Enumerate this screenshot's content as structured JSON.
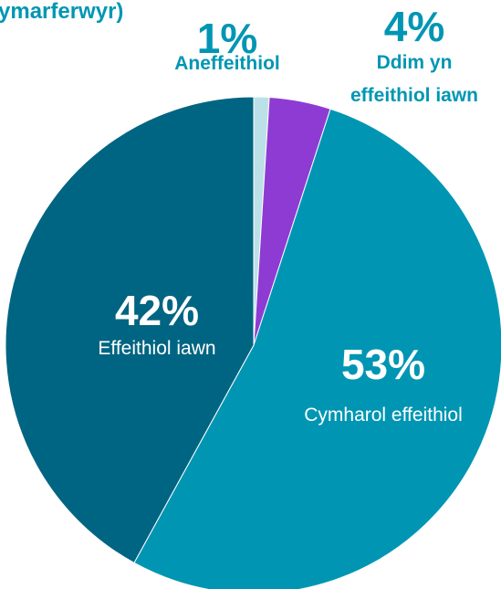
{
  "chart_data": {
    "type": "pie",
    "title_fragment": "ymarferwyr)",
    "start_angle_deg": 0,
    "direction": "clockwise",
    "slices": [
      {
        "label_lines": [
          "Aneffeithiol"
        ],
        "value": 1,
        "value_text": "1%",
        "color": "#BCE0E8",
        "label_color": "#0096B3",
        "label_style": "outside"
      },
      {
        "label_lines": [
          "Ddim yn",
          "effeithiol iawn"
        ],
        "value": 4,
        "value_text": "4%",
        "color": "#8E3BD4",
        "label_color": "#0096B3",
        "label_style": "outside"
      },
      {
        "label_lines": [
          "Cymharol effeithiol"
        ],
        "value": 53,
        "value_text": "53%",
        "color": "#0096B3",
        "label_color": "#FFFFFF",
        "label_style": "inside"
      },
      {
        "label_lines": [
          "Effeithiol iawn"
        ],
        "value": 42,
        "value_text": "42%",
        "color": "#006582",
        "label_color": "#FFFFFF",
        "label_style": "inside"
      }
    ],
    "title_color": "#0096B3",
    "legend": "none"
  }
}
